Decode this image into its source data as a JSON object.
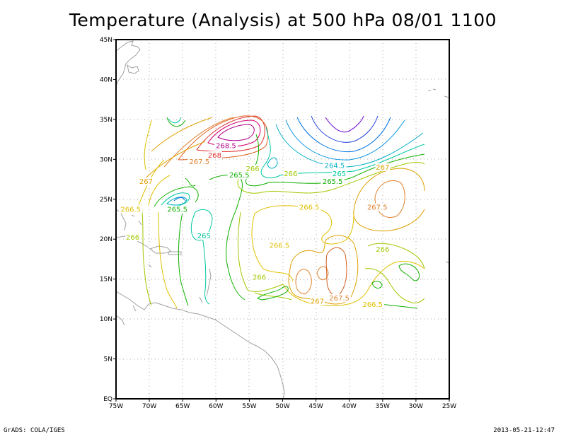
{
  "title": "Temperature (Analysis) at 500 hPa 08/01 1100",
  "footer": {
    "credit": "GrADS: COLA/IGES",
    "timestamp": "2013-05-21-12:47"
  },
  "map": {
    "lon_range": [
      -75,
      -25
    ],
    "lat_range": [
      0,
      45
    ],
    "lon_ticks": [
      "75W",
      "70W",
      "65W",
      "60W",
      "55W",
      "50W",
      "45W",
      "40W",
      "35W",
      "30W",
      "25W"
    ],
    "lat_ticks": [
      "EQ",
      "5N",
      "10N",
      "15N",
      "20N",
      "25N",
      "30N",
      "35N",
      "40N",
      "45N"
    ],
    "grid": "dotted",
    "coastline_color": "#a0a0a0",
    "contour_labels": [
      {
        "text": "268.5",
        "lon": -58.5,
        "lat": 31.5,
        "color": "#b0008c"
      },
      {
        "text": "268",
        "lon": -60.2,
        "lat": 30.3,
        "color": "#e0302c"
      },
      {
        "text": "267.5",
        "lon": -62.5,
        "lat": 29.5,
        "color": "#e0802c"
      },
      {
        "text": "267",
        "lon": -70.5,
        "lat": 27.0,
        "color": "#e0a000"
      },
      {
        "text": "266.5",
        "lon": -72.8,
        "lat": 23.5,
        "color": "#e0c000"
      },
      {
        "text": "266",
        "lon": -72.5,
        "lat": 20.0,
        "color": "#a0c800"
      },
      {
        "text": "265.5",
        "lon": -65.8,
        "lat": 23.5,
        "color": "#10b000"
      },
      {
        "text": "265",
        "lon": -61.8,
        "lat": 20.2,
        "color": "#00c8a0"
      },
      {
        "text": "265.5",
        "lon": -56.5,
        "lat": 27.8,
        "color": "#10b000"
      },
      {
        "text": "266",
        "lon": -54.5,
        "lat": 28.6,
        "color": "#a0c800"
      },
      {
        "text": "266",
        "lon": -48.8,
        "lat": 28.0,
        "color": "#a0c800"
      },
      {
        "text": "264.5",
        "lon": -42.2,
        "lat": 29.0,
        "color": "#00b0c8"
      },
      {
        "text": "265",
        "lon": -41.5,
        "lat": 28.0,
        "color": "#00c8a0"
      },
      {
        "text": "265.5",
        "lon": -42.5,
        "lat": 27.0,
        "color": "#10b000"
      },
      {
        "text": "266.5",
        "lon": -46.0,
        "lat": 23.8,
        "color": "#e0c000"
      },
      {
        "text": "266.5",
        "lon": -50.5,
        "lat": 19.0,
        "color": "#e0c000"
      },
      {
        "text": "266",
        "lon": -53.5,
        "lat": 15.0,
        "color": "#a0c800"
      },
      {
        "text": "267",
        "lon": -35.0,
        "lat": 28.8,
        "color": "#e0a000"
      },
      {
        "text": "267.5",
        "lon": -35.8,
        "lat": 23.8,
        "color": "#e0802c"
      },
      {
        "text": "266",
        "lon": -35.0,
        "lat": 18.5,
        "color": "#a0c800"
      },
      {
        "text": "267",
        "lon": -44.8,
        "lat": 12.0,
        "color": "#e0a000"
      },
      {
        "text": "267.5",
        "lon": -41.5,
        "lat": 12.4,
        "color": "#e0802c"
      },
      {
        "text": "266.5",
        "lon": -36.5,
        "lat": 11.6,
        "color": "#e0c000"
      }
    ]
  }
}
